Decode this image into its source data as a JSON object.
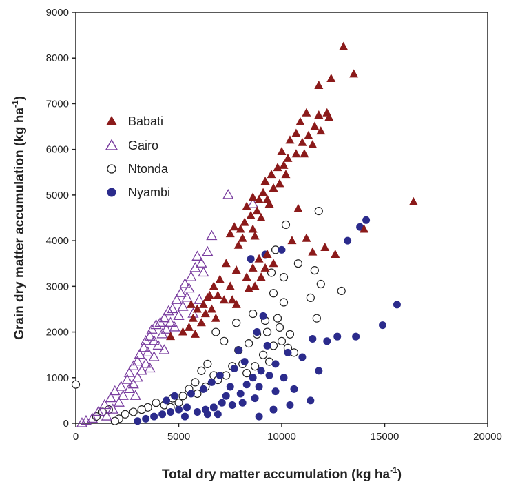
{
  "chart_data": {
    "type": "scatter",
    "xlabel": "Total dry matter accumulation (kg ha",
    "xlabel_sup": "-1",
    "xlabel_end": ")",
    "ylabel": "Grain dry matter accumulation (kg ha",
    "ylabel_sup": "-1",
    "ylabel_end": ")",
    "xlim": [
      0,
      20000
    ],
    "ylim": [
      0,
      9000
    ],
    "xticks": [
      0,
      5000,
      10000,
      15000,
      20000
    ],
    "yticks": [
      0,
      1000,
      2000,
      3000,
      4000,
      5000,
      6000,
      7000,
      8000,
      9000
    ],
    "grid": false,
    "legend_position": "upper-left",
    "series": [
      {
        "name": "Babati",
        "marker": "triangle-filled",
        "color": "#8B1A1A",
        "points": [
          [
            13000,
            8250
          ],
          [
            13500,
            7650
          ],
          [
            11800,
            7400
          ],
          [
            12400,
            7550
          ],
          [
            16400,
            4850
          ],
          [
            14000,
            4250
          ],
          [
            12200,
            6800
          ],
          [
            11800,
            6750
          ],
          [
            12300,
            6700
          ],
          [
            11200,
            6800
          ],
          [
            11600,
            6500
          ],
          [
            11900,
            6400
          ],
          [
            10900,
            6600
          ],
          [
            11300,
            6300
          ],
          [
            10700,
            6350
          ],
          [
            11000,
            6150
          ],
          [
            11500,
            6100
          ],
          [
            10400,
            6200
          ],
          [
            10000,
            5950
          ],
          [
            10300,
            5800
          ],
          [
            10700,
            5900
          ],
          [
            11100,
            5900
          ],
          [
            10100,
            5650
          ],
          [
            10200,
            5450
          ],
          [
            9800,
            5600
          ],
          [
            9500,
            5450
          ],
          [
            9900,
            5250
          ],
          [
            9200,
            5300
          ],
          [
            9600,
            5150
          ],
          [
            9100,
            5050
          ],
          [
            8900,
            4900
          ],
          [
            9300,
            4900
          ],
          [
            8600,
            4950
          ],
          [
            8300,
            4750
          ],
          [
            8800,
            4650
          ],
          [
            9000,
            4500
          ],
          [
            8500,
            4550
          ],
          [
            8200,
            4400
          ],
          [
            8000,
            4250
          ],
          [
            7700,
            4300
          ],
          [
            8600,
            4250
          ],
          [
            7500,
            4150
          ],
          [
            8100,
            4050
          ],
          [
            10500,
            4000
          ],
          [
            11200,
            4050
          ],
          [
            12100,
            3850
          ],
          [
            12600,
            3700
          ],
          [
            11500,
            3750
          ],
          [
            9600,
            3500
          ],
          [
            9200,
            3400
          ],
          [
            8900,
            3600
          ],
          [
            8600,
            3400
          ],
          [
            7300,
            3500
          ],
          [
            7800,
            3350
          ],
          [
            8300,
            3200
          ],
          [
            7000,
            3150
          ],
          [
            7500,
            3000
          ],
          [
            8700,
            3000
          ],
          [
            6700,
            3000
          ],
          [
            6500,
            2800
          ],
          [
            6900,
            2800
          ],
          [
            7200,
            2700
          ],
          [
            6200,
            2600
          ],
          [
            5900,
            2500
          ],
          [
            6300,
            2400
          ],
          [
            5700,
            2300
          ],
          [
            6100,
            2200
          ],
          [
            5500,
            2100
          ],
          [
            5200,
            2000
          ],
          [
            5800,
            1950
          ],
          [
            4600,
            1900
          ],
          [
            5600,
            2600
          ],
          [
            6600,
            2500
          ],
          [
            7600,
            2700
          ],
          [
            8400,
            2950
          ],
          [
            9000,
            3200
          ],
          [
            7800,
            2600
          ],
          [
            6800,
            2300
          ],
          [
            9300,
            3700
          ],
          [
            8700,
            4100
          ],
          [
            10800,
            4700
          ],
          [
            9400,
            4800
          ],
          [
            7900,
            3900
          ],
          [
            6400,
            2750
          ]
        ]
      },
      {
        "name": "Gairo",
        "marker": "triangle-open",
        "color": "#7B3FA0",
        "points": [
          [
            7400,
            5000
          ],
          [
            8600,
            4800
          ],
          [
            6600,
            4100
          ],
          [
            6400,
            3750
          ],
          [
            5900,
            3650
          ],
          [
            6100,
            3500
          ],
          [
            5800,
            3400
          ],
          [
            6200,
            3300
          ],
          [
            5600,
            3200
          ],
          [
            5300,
            3050
          ],
          [
            5500,
            2950
          ],
          [
            5100,
            2850
          ],
          [
            5400,
            2750
          ],
          [
            4900,
            2700
          ],
          [
            5200,
            2550
          ],
          [
            4700,
            2500
          ],
          [
            4500,
            2450
          ],
          [
            5000,
            2350
          ],
          [
            4300,
            2300
          ],
          [
            4600,
            2200
          ],
          [
            4100,
            2200
          ],
          [
            3900,
            2150
          ],
          [
            4400,
            2050
          ],
          [
            3700,
            2050
          ],
          [
            4200,
            1950
          ],
          [
            3600,
            1900
          ],
          [
            3800,
            1800
          ],
          [
            3400,
            1800
          ],
          [
            4000,
            1700
          ],
          [
            3300,
            1650
          ],
          [
            3500,
            1550
          ],
          [
            3100,
            1500
          ],
          [
            3800,
            1450
          ],
          [
            3000,
            1350
          ],
          [
            3400,
            1300
          ],
          [
            2800,
            1250
          ],
          [
            3200,
            1150
          ],
          [
            2600,
            1100
          ],
          [
            3000,
            1000
          ],
          [
            2500,
            950
          ],
          [
            2800,
            850
          ],
          [
            2200,
            800
          ],
          [
            2600,
            750
          ],
          [
            1900,
            700
          ],
          [
            2300,
            600
          ],
          [
            1700,
            550
          ],
          [
            2100,
            450
          ],
          [
            1400,
            400
          ],
          [
            1800,
            300
          ],
          [
            1100,
            250
          ],
          [
            1500,
            150
          ],
          [
            800,
            100
          ],
          [
            500,
            50
          ],
          [
            300,
            0
          ],
          [
            4800,
            2100
          ],
          [
            5700,
            2400
          ],
          [
            6000,
            2700
          ],
          [
            4300,
            1600
          ],
          [
            3600,
            1200
          ],
          [
            2900,
            600
          ]
        ]
      },
      {
        "name": "Ntonda",
        "marker": "circle-open",
        "color": "#222222",
        "points": [
          [
            11800,
            4650
          ],
          [
            10200,
            4350
          ],
          [
            9700,
            3800
          ],
          [
            10800,
            3500
          ],
          [
            11600,
            3350
          ],
          [
            9500,
            3300
          ],
          [
            10100,
            3200
          ],
          [
            11900,
            3050
          ],
          [
            12900,
            2900
          ],
          [
            9600,
            2850
          ],
          [
            11400,
            2750
          ],
          [
            10100,
            2650
          ],
          [
            9800,
            2300
          ],
          [
            11700,
            2300
          ],
          [
            9200,
            2250
          ],
          [
            8600,
            2400
          ],
          [
            9900,
            2100
          ],
          [
            9300,
            2000
          ],
          [
            10400,
            1950
          ],
          [
            8800,
            1950
          ],
          [
            10000,
            1800
          ],
          [
            9600,
            1700
          ],
          [
            10300,
            1650
          ],
          [
            8400,
            1750
          ],
          [
            10600,
            1550
          ],
          [
            9100,
            1500
          ],
          [
            7900,
            1600
          ],
          [
            9400,
            1350
          ],
          [
            8100,
            1300
          ],
          [
            8700,
            1250
          ],
          [
            7600,
            1250
          ],
          [
            8300,
            1100
          ],
          [
            7300,
            1050
          ],
          [
            6700,
            1050
          ],
          [
            6400,
            1300
          ],
          [
            6900,
            950
          ],
          [
            6100,
            1150
          ],
          [
            5800,
            900
          ],
          [
            6300,
            800
          ],
          [
            5500,
            750
          ],
          [
            5900,
            650
          ],
          [
            5200,
            600
          ],
          [
            4700,
            550
          ],
          [
            5000,
            450
          ],
          [
            4300,
            400
          ],
          [
            4600,
            350
          ],
          [
            3900,
            450
          ],
          [
            3500,
            350
          ],
          [
            3200,
            300
          ],
          [
            2800,
            250
          ],
          [
            2400,
            200
          ],
          [
            2100,
            100
          ],
          [
            1900,
            50
          ],
          [
            1600,
            300
          ],
          [
            1300,
            250
          ],
          [
            1000,
            150
          ],
          [
            0,
            850
          ],
          [
            7200,
            1800
          ],
          [
            6800,
            2000
          ],
          [
            7800,
            2200
          ]
        ]
      },
      {
        "name": "Nyambi",
        "marker": "circle-filled",
        "color": "#2B2B8C",
        "points": [
          [
            14100,
            4450
          ],
          [
            13800,
            4300
          ],
          [
            13200,
            4000
          ],
          [
            15600,
            2600
          ],
          [
            14900,
            2150
          ],
          [
            12700,
            1900
          ],
          [
            13600,
            1900
          ],
          [
            12200,
            1800
          ],
          [
            11500,
            1850
          ],
          [
            11000,
            1450
          ],
          [
            11800,
            1150
          ],
          [
            10300,
            1550
          ],
          [
            9700,
            1300
          ],
          [
            10100,
            1000
          ],
          [
            9400,
            1050
          ],
          [
            9000,
            1150
          ],
          [
            10600,
            750
          ],
          [
            9700,
            700
          ],
          [
            8600,
            1000
          ],
          [
            8300,
            850
          ],
          [
            8900,
            800
          ],
          [
            8000,
            650
          ],
          [
            7500,
            800
          ],
          [
            7300,
            600
          ],
          [
            8700,
            550
          ],
          [
            8100,
            450
          ],
          [
            7600,
            400
          ],
          [
            7100,
            450
          ],
          [
            6700,
            350
          ],
          [
            6300,
            300
          ],
          [
            6900,
            200
          ],
          [
            5900,
            250
          ],
          [
            5400,
            350
          ],
          [
            5000,
            300
          ],
          [
            4600,
            250
          ],
          [
            4200,
            200
          ],
          [
            3800,
            150
          ],
          [
            3400,
            100
          ],
          [
            3000,
            50
          ],
          [
            4400,
            500
          ],
          [
            4800,
            600
          ],
          [
            5600,
            650
          ],
          [
            6200,
            750
          ],
          [
            6600,
            900
          ],
          [
            7000,
            1050
          ],
          [
            7700,
            1200
          ],
          [
            8200,
            1350
          ],
          [
            9300,
            1700
          ],
          [
            8800,
            2000
          ],
          [
            9100,
            2350
          ],
          [
            8500,
            3600
          ],
          [
            10000,
            3800
          ],
          [
            9200,
            3700
          ],
          [
            8900,
            150
          ],
          [
            11400,
            500
          ],
          [
            10400,
            400
          ],
          [
            9600,
            300
          ],
          [
            6400,
            200
          ],
          [
            5300,
            150
          ],
          [
            7900,
            1600
          ]
        ]
      }
    ]
  }
}
